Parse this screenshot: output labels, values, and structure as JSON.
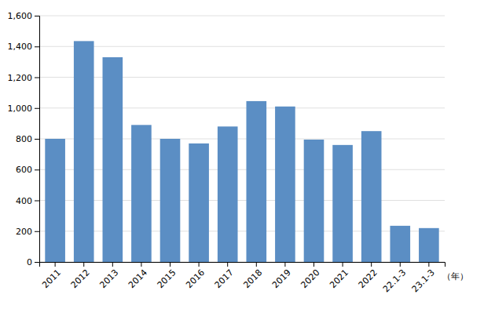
{
  "chart_data": {
    "type": "bar",
    "categories": [
      "2011",
      "2012",
      "2013",
      "2014",
      "2015",
      "2016",
      "2017",
      "2018",
      "2019",
      "2020",
      "2021",
      "2022",
      "22.1-3",
      "23.1-3"
    ],
    "values": [
      800,
      1435,
      1330,
      890,
      800,
      770,
      880,
      1045,
      1010,
      795,
      760,
      850,
      235,
      220
    ],
    "color": "#5b8ec4",
    "ylim": [
      0,
      1600
    ],
    "yticks": [
      0,
      200,
      400,
      600,
      800,
      {
        "value": 1000,
        "label": "1,000"
      },
      {
        "value": 1200,
        "label": "1,200"
      },
      {
        "value": 1400,
        "label": "1,400"
      },
      {
        "value": 1600,
        "label": "1,600"
      }
    ],
    "grid": true,
    "annotations": [
      "（年）"
    ]
  }
}
